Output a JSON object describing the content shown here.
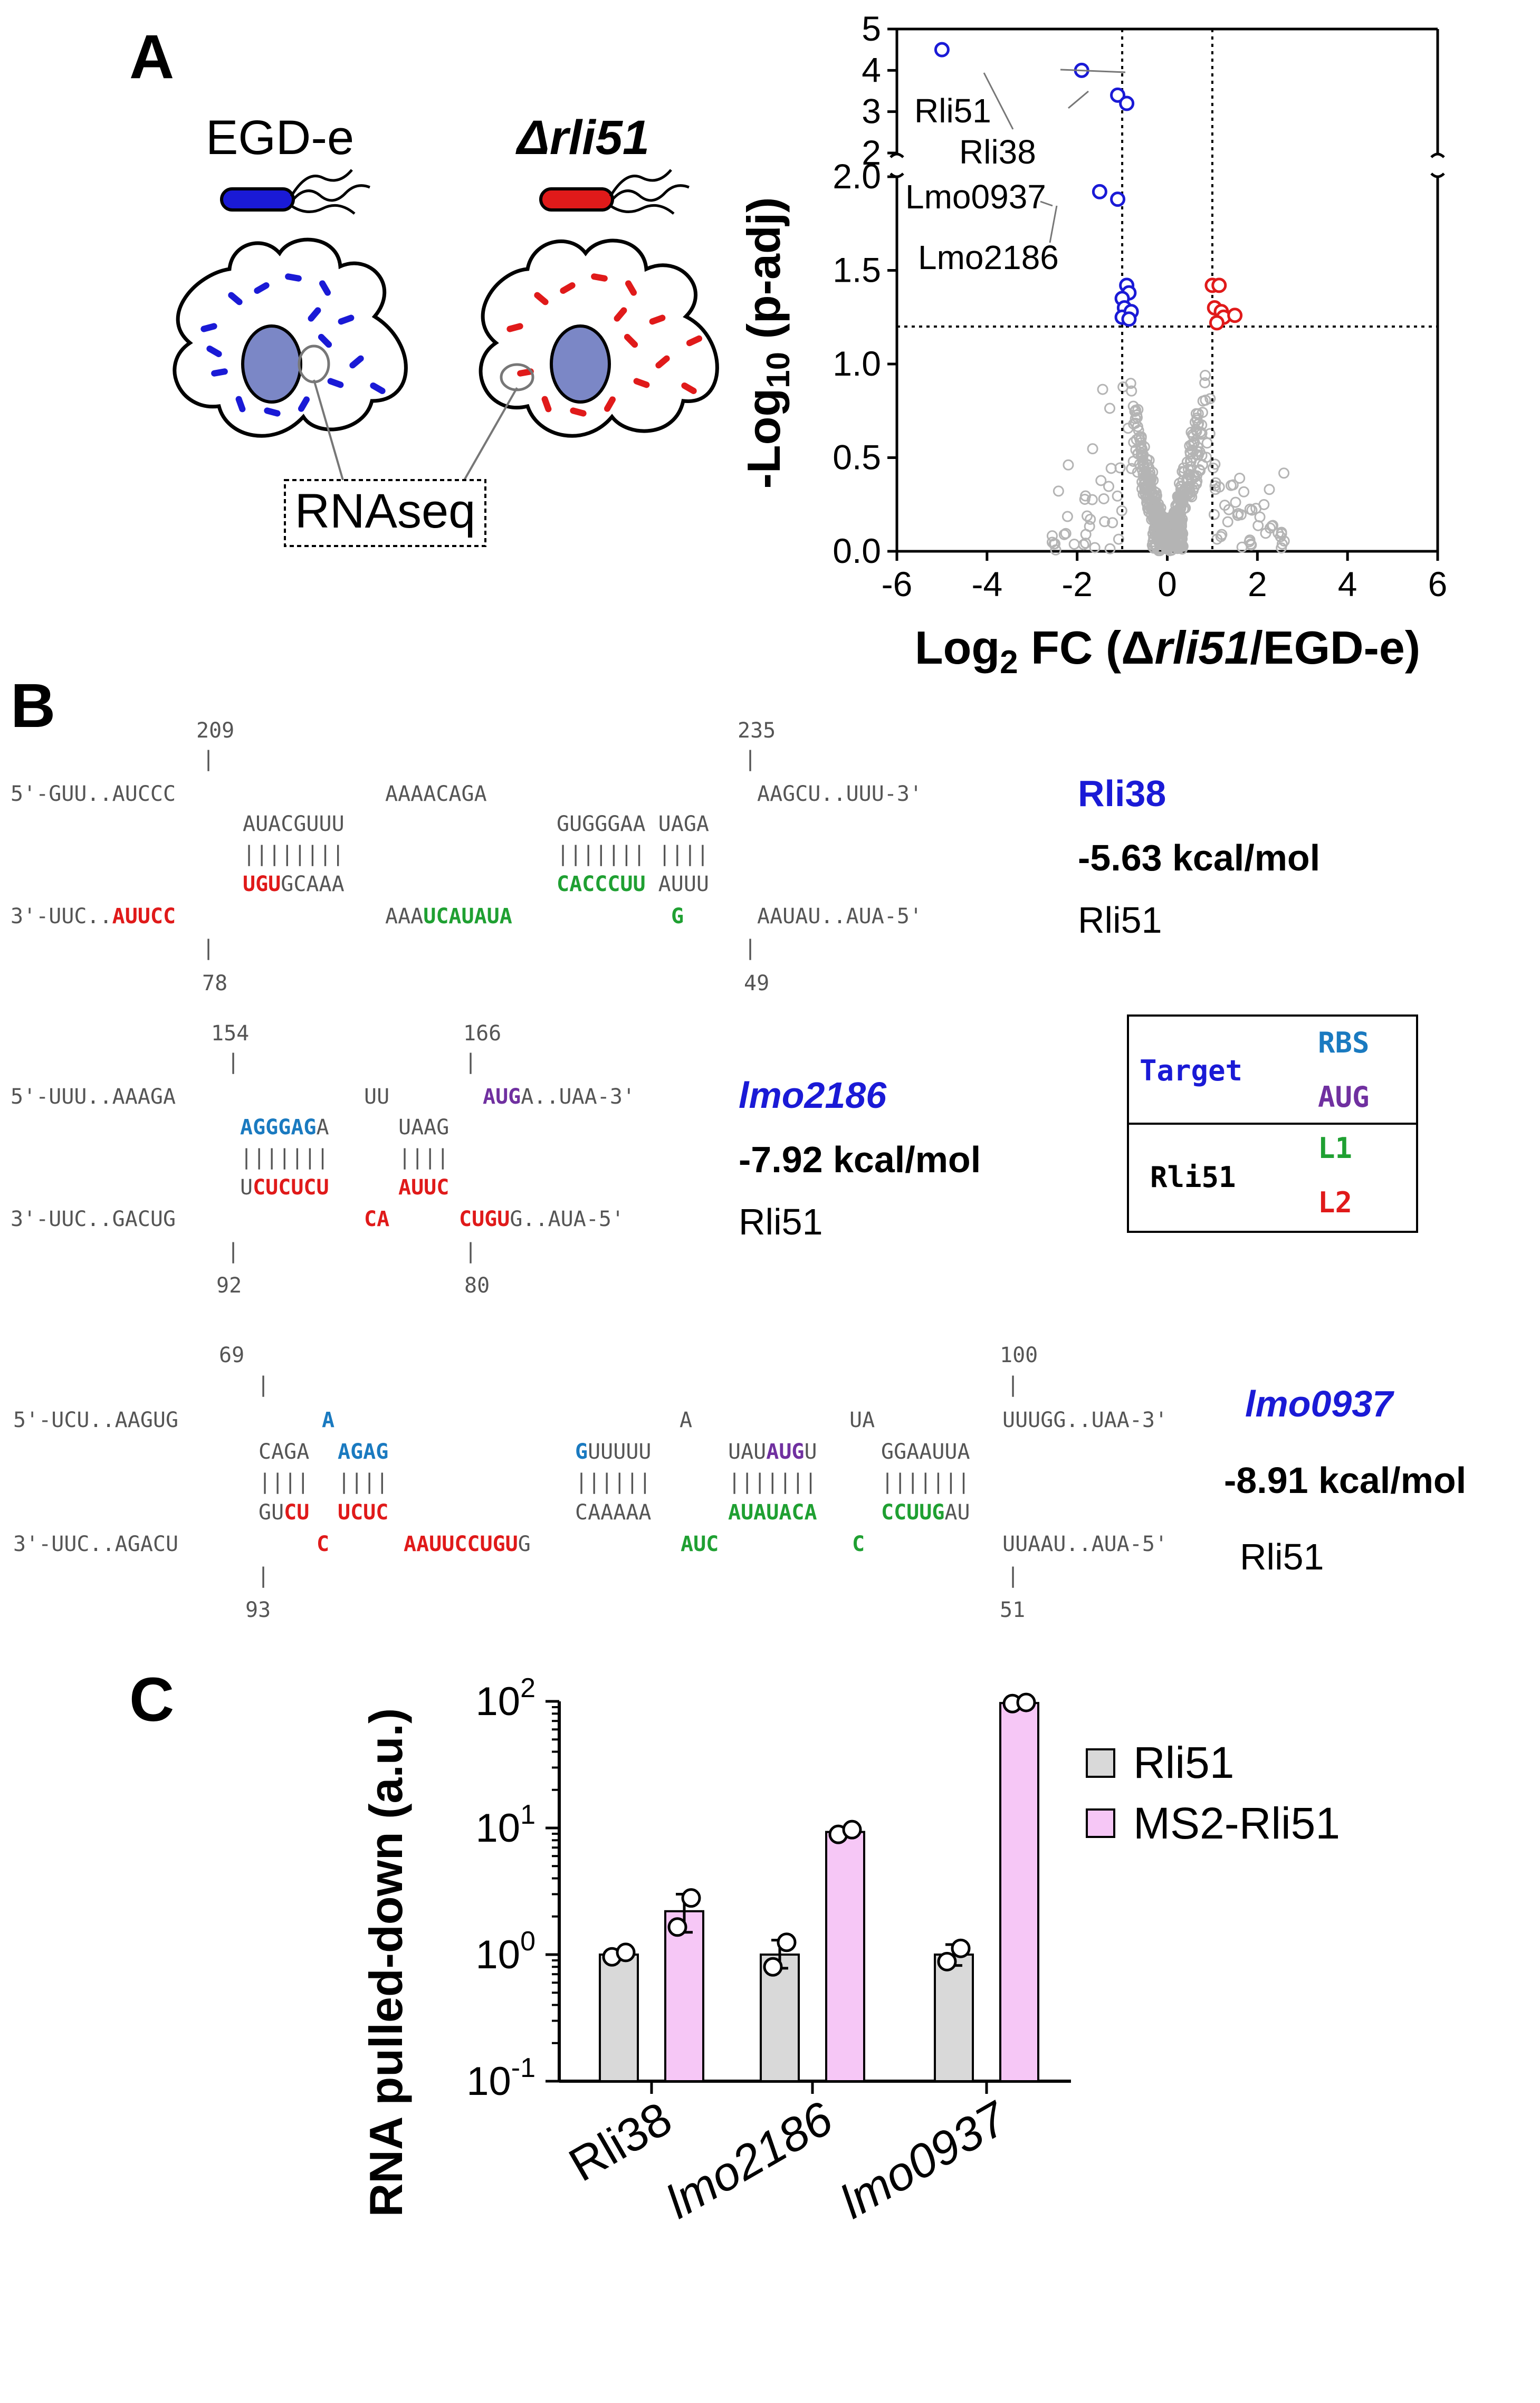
{
  "panel_labels": {
    "a": "A",
    "b": "B",
    "c": "C"
  },
  "panel_a": {
    "strain_wt": "EGD-e",
    "strain_mut_delta": "Δ",
    "strain_mut_gene": "rli51",
    "rnaseq_label": "RNAseq",
    "colors": {
      "wt": "#1a1ad6",
      "mut": "#e01a1a",
      "nucleus": "#7b87c6",
      "nonsig": "#b4b4b4"
    }
  },
  "volcano": {
    "y_title_main": "-Log",
    "y_title_sub": "10",
    "y_title_tail": " (p-adj)",
    "x_title_a": "Log",
    "x_title_sub": "2",
    "x_title_b": " FC (Δ",
    "x_title_gene": "rli51",
    "x_title_c": "/EGD-e)",
    "annotations": [
      "Rli51",
      "Rli38",
      "Lmo0937",
      "Lmo2186"
    ]
  },
  "chart_data": [
    {
      "type": "scatter",
      "title": "",
      "xlabel": "Log2 FC (Δrli51/EGD-e)",
      "ylabel": "-Log10 (p-adj)",
      "xlim": [
        -6,
        6
      ],
      "ylim_lower": [
        0,
        2.0
      ],
      "ylim_upper": [
        2,
        5
      ],
      "x_ticks": [
        "-6",
        "-4",
        "-2",
        "0",
        "2",
        "4",
        "6"
      ],
      "y_ticks_lower": [
        "0.0",
        "0.5",
        "1.0",
        "1.5",
        "2.0"
      ],
      "y_ticks_upper": [
        "2",
        "3",
        "4",
        "5"
      ],
      "thresholds": {
        "log2fc": [
          -1,
          1
        ],
        "neg_log10_padj": 1.2
      },
      "series": [
        {
          "name": "down",
          "color": "#1a1ad6",
          "points": [
            [
              -5.0,
              4.5
            ],
            [
              -1.9,
              4.0
            ],
            [
              -1.1,
              3.4
            ],
            [
              -0.9,
              3.2
            ],
            [
              -1.5,
              1.92
            ],
            [
              -1.1,
              1.88
            ],
            [
              -0.9,
              1.42
            ],
            [
              -0.85,
              1.38
            ],
            [
              -1.0,
              1.35
            ],
            [
              -0.95,
              1.3
            ],
            [
              -1.0,
              1.25
            ],
            [
              -0.8,
              1.28
            ],
            [
              -0.85,
              1.24
            ]
          ]
        },
        {
          "name": "up",
          "color": "#e01a1a",
          "points": [
            [
              1.0,
              1.42
            ],
            [
              1.15,
              1.42
            ],
            [
              1.05,
              1.3
            ],
            [
              1.2,
              1.28
            ],
            [
              1.25,
              1.25
            ],
            [
              1.1,
              1.22
            ],
            [
              1.5,
              1.26
            ]
          ]
        },
        {
          "name": "not significant",
          "color": "#b4b4b4"
        }
      ]
    },
    {
      "type": "bar",
      "title": "",
      "ylabel": "RNA pulled-down (a.u.)",
      "yscale": "log",
      "ylim": [
        0.1,
        100
      ],
      "y_ticks": [
        {
          "base": "10",
          "exp": "-1"
        },
        {
          "base": "10",
          "exp": "0"
        },
        {
          "base": "10",
          "exp": "1"
        },
        {
          "base": "10",
          "exp": "2"
        }
      ],
      "categories": [
        "Rli38",
        "lmo2186",
        "lmo0937"
      ],
      "series": [
        {
          "name": "Rli51",
          "color": "#d9d9d9",
          "values": [
            1.0,
            1.0,
            1.0
          ],
          "err_low": [
            0.92,
            0.78,
            0.82
          ],
          "err_high": [
            1.1,
            1.3,
            1.2
          ],
          "points": [
            [
              0.96,
              1.04
            ],
            [
              0.8,
              1.25
            ],
            [
              0.88,
              1.12
            ]
          ]
        },
        {
          "name": "MS2-Rli51",
          "color": "#f6c7f6",
          "values": [
            2.2,
            9.3,
            97
          ],
          "err_low": [
            1.5,
            8.6,
            94
          ],
          "err_high": [
            3.0,
            10.0,
            100
          ],
          "points": [
            [
              1.65,
              2.8
            ],
            [
              8.9,
              9.7
            ],
            [
              96,
              98
            ]
          ]
        }
      ]
    }
  ],
  "panel_b": {
    "label_colors": {
      "target": "#1a1ad6",
      "rbs": "#1a7ac0",
      "aug": "#7030a0",
      "l1": "#1fa032",
      "l2": "#e01a1a"
    },
    "duplex1": {
      "num_top_left": "209",
      "num_top_right": "235",
      "num_bot_left": "78",
      "num_bot_right": "49",
      "top_a": "5'-GUU..AUCCC",
      "top_b": "AAAACAGA",
      "top_c": "AAGCU..UUU-3'",
      "mid1_a": "AUACGUUU",
      "mid1_b": "GUGGGAA UAGA",
      "bars_a": "||||||||",
      "bars_b": "||||||| ||||",
      "mid2_l2": "UGU",
      "mid2_a": "GCAAA",
      "mid2_l1": "CACCCUU",
      "mid2_b": " AUUU",
      "bot_a": "3'-UUC..",
      "bot_l2": "AUUCC",
      "bot_b": "AAA",
      "bot_l1": "UCAUAUA",
      "bot_g": "G",
      "bot_c": "AAUAU..AUA-5'",
      "name": "Rli38",
      "energy": "-5.63 kcal/mol",
      "srna": "Rli51"
    },
    "duplex2": {
      "num_top_left": "154",
      "num_top_right": "166",
      "num_bot_left": "92",
      "num_bot_right": "80",
      "top_a": "5'-UUU..AAAGA",
      "top_b": "UU",
      "top_aug": "AUG",
      "top_c": "A..UAA-3'",
      "mid1_rbs": "AGGGAG",
      "mid1_a": "A",
      "mid1_b": "UAAG",
      "bars_a": "|||||||",
      "bars_b": "||||",
      "mid2_a": "U",
      "mid2_l2a": "CUCUCU",
      "mid2_l2b": "AUUC",
      "bot_a": "3'-UUC..GACUG",
      "bot_l2a": "CA",
      "bot_l2b": "CUGU",
      "bot_c": "G..AUA-5'",
      "name": "lmo2186",
      "energy": "-7.92 kcal/mol",
      "srna": "Rli51"
    },
    "duplex3": {
      "num_top_left": "69",
      "num_top_right": "100",
      "num_bot_left": "93",
      "num_bot_right": "51",
      "top_a": "5'-UCU..AAGUG",
      "top_rbs": "A",
      "top_b": "A",
      "top_c": "UA",
      "top_d": "UUUGG..UAA-3'",
      "mid1_a": "CAGA",
      "mid1_rbs": "AGAG",
      "mid1_rbs2": "G",
      "mid1_b": "UUUUU",
      "mid1_c": "UAU",
      "mid1_aug": "AUG",
      "mid1_d": "U",
      "mid1_e": "GGAAUUA",
      "bars_a": "||||",
      "bars_b": "||||",
      "bars_c": "||||||",
      "bars_d": "|||||||",
      "bars_e": "|||||||",
      "mid2_a": "GU",
      "mid2_l2a": "CU",
      "mid2_l2b": "UCUC",
      "mid2_b": "CAAAAA",
      "mid2_l1a": "AUAUACA",
      "mid2_l1b": "CCUUG",
      "mid2_c": "AU",
      "bot_a": "3'-UUC..AGACU",
      "bot_l2a": "C",
      "bot_l2b": "AAUUCCUGU",
      "bot_b": "G",
      "bot_l1a": "AUC",
      "bot_l1b": "C",
      "bot_c": "UUAAU..AUA-5'",
      "name": "lmo0937",
      "energy": "-8.91 kcal/mol",
      "srna": "Rli51"
    },
    "legend": {
      "target": "Target",
      "rbs": "RBS",
      "aug": "AUG",
      "srna": "Rli51",
      "l1": "L1",
      "l2": "L2"
    }
  },
  "panel_c": {
    "y_title": "RNA pulled-down (a.u.)",
    "legend": [
      "Rli51",
      "MS2-Rli51"
    ]
  }
}
